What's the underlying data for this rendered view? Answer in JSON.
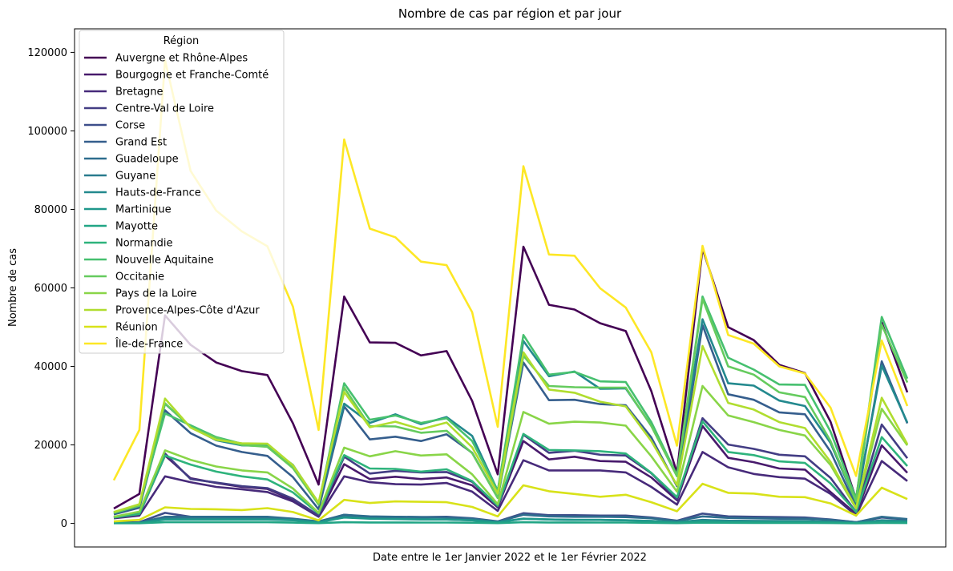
{
  "chart_data": {
    "type": "line",
    "title": "Nombre de cas par région et par jour",
    "xlabel": "Date entre le 1er Janvier 2022 et le 1er Février 2022",
    "ylabel": "Nombre de cas",
    "ylim": [
      -6000,
      126000
    ],
    "yticks": [
      0,
      20000,
      40000,
      60000,
      80000,
      100000,
      120000
    ],
    "x_ticks_shown": false,
    "n_days": 32,
    "grid": false,
    "legend": {
      "title": "Région",
      "placement": "top-left"
    },
    "series": [
      {
        "name": "Auvergne et Rhône-Alpes",
        "color": "#440154",
        "values": [
          3800,
          7500,
          53000,
          45500,
          41000,
          38800,
          37800,
          25500,
          9900,
          57800,
          46100,
          46000,
          42800,
          43900,
          31200,
          12500,
          70500,
          55700,
          54500,
          51000,
          49000,
          33700,
          12900,
          70000,
          50000,
          46700,
          40400,
          38300,
          25900,
          6200,
          51200,
          33400
        ]
      },
      {
        "name": "Bourgogne et Franche-Comté",
        "color": "#481a6c",
        "values": [
          1500,
          2300,
          17300,
          11500,
          10300,
          9300,
          8800,
          6000,
          1900,
          15100,
          11300,
          11900,
          11300,
          11700,
          9700,
          4100,
          21000,
          16300,
          17000,
          15900,
          15700,
          11700,
          5900,
          24800,
          16700,
          15600,
          14000,
          13700,
          8000,
          2400,
          19900,
          12900
        ]
      },
      {
        "name": "Bretagne",
        "color": "#472a7a",
        "values": [
          1300,
          2000,
          12000,
          10500,
          9300,
          8700,
          8000,
          5600,
          1700,
          12000,
          10500,
          10000,
          9900,
          10300,
          8100,
          3200,
          16100,
          13500,
          13500,
          13500,
          13000,
          9300,
          4800,
          18200,
          14300,
          12600,
          11800,
          11400,
          7500,
          2000,
          15900,
          10800
        ]
      },
      {
        "name": "Centre-Val de Loire",
        "color": "#433d84",
        "values": [
          1600,
          2500,
          17800,
          11300,
          10400,
          9500,
          9000,
          6300,
          2000,
          17000,
          12700,
          13400,
          13000,
          13100,
          10600,
          4300,
          22600,
          18000,
          18500,
          17500,
          17300,
          12800,
          6200,
          26800,
          20100,
          19000,
          17500,
          17100,
          11600,
          2900,
          25200,
          16600
        ]
      },
      {
        "name": "Corse",
        "color": "#3d4e8a",
        "values": [
          200,
          300,
          2700,
          1700,
          1600,
          1500,
          1500,
          1000,
          300,
          2200,
          1600,
          1700,
          1600,
          1700,
          1300,
          500,
          2600,
          2100,
          2100,
          2000,
          2000,
          1500,
          700,
          2500,
          1800,
          1700,
          1600,
          1500,
          1000,
          300,
          1500,
          1000
        ]
      },
      {
        "name": "Grand Est",
        "color": "#355e8d",
        "values": [
          2300,
          4000,
          28800,
          23000,
          19800,
          18200,
          17200,
          11800,
          3600,
          29800,
          21400,
          22100,
          21000,
          22700,
          18000,
          6500,
          41000,
          31400,
          31500,
          30400,
          30100,
          21900,
          9500,
          50500,
          32900,
          31500,
          28300,
          27800,
          18300,
          4300,
          41300,
          25500
        ]
      },
      {
        "name": "Guadeloupe",
        "color": "#2e6d8e",
        "values": [
          100,
          200,
          1700,
          1700,
          1700,
          1700,
          1700,
          1200,
          500,
          2200,
          1800,
          1700,
          1600,
          1500,
          1200,
          400,
          2200,
          1800,
          1700,
          1700,
          1600,
          1300,
          600,
          1800,
          1400,
          1300,
          1200,
          1200,
          900,
          300,
          1700,
          1100
        ]
      },
      {
        "name": "Guyane",
        "color": "#297b8e",
        "values": [
          100,
          150,
          1200,
          1200,
          1200,
          1200,
          1200,
          900,
          300,
          1700,
          1300,
          1200,
          1100,
          1000,
          800,
          300,
          1200,
          1000,
          900,
          900,
          800,
          600,
          300,
          900,
          700,
          650,
          600,
          600,
          450,
          150,
          800,
          600
        ]
      },
      {
        "name": "Hauts-de-France",
        "color": "#23898e",
        "values": [
          2600,
          4500,
          30500,
          24600,
          21200,
          19900,
          19700,
          14900,
          5100,
          30500,
          25600,
          27800,
          25300,
          27100,
          22300,
          8300,
          46500,
          37500,
          38700,
          34300,
          34400,
          24900,
          12300,
          52000,
          35700,
          35100,
          31300,
          29900,
          20500,
          5300,
          40200,
          25700
        ]
      },
      {
        "name": "Martinique",
        "color": "#1f978b",
        "values": [
          80,
          120,
          1000,
          1000,
          1000,
          1000,
          1000,
          800,
          300,
          1500,
          1200,
          1100,
          1000,
          1000,
          800,
          300,
          1200,
          1000,
          900,
          900,
          800,
          600,
          300,
          700,
          500,
          500,
          450,
          450,
          350,
          120,
          650,
          450
        ]
      },
      {
        "name": "Mayotte",
        "color": "#21a585",
        "values": [
          50,
          60,
          300,
          300,
          300,
          300,
          300,
          200,
          80,
          300,
          250,
          250,
          230,
          220,
          180,
          80,
          300,
          250,
          250,
          230,
          220,
          170,
          80,
          200,
          160,
          150,
          140,
          140,
          110,
          40,
          150,
          100
        ]
      },
      {
        "name": "Normandie",
        "color": "#2eb37c",
        "values": [
          1500,
          2400,
          17300,
          15000,
          13200,
          12000,
          11200,
          7900,
          2500,
          17400,
          14000,
          13900,
          13200,
          13800,
          10800,
          4500,
          22800,
          18700,
          18600,
          18400,
          17800,
          12900,
          6700,
          26000,
          18200,
          17400,
          15800,
          15400,
          10200,
          2900,
          22000,
          14600
        ]
      },
      {
        "name": "Nouvelle Aquitaine",
        "color": "#46c06f",
        "values": [
          2800,
          4800,
          28000,
          25000,
          22000,
          20300,
          20000,
          14300,
          5000,
          35700,
          26400,
          27500,
          25600,
          26800,
          21000,
          8300,
          48000,
          37900,
          38600,
          36200,
          36000,
          25800,
          12300,
          57800,
          42200,
          39200,
          35400,
          35300,
          23400,
          6300,
          52600,
          36900
        ]
      },
      {
        "name": "Occitanie",
        "color": "#65cb5e",
        "values": [
          2700,
          4500,
          30600,
          24500,
          21800,
          20000,
          19500,
          14100,
          4800,
          34600,
          24800,
          24700,
          23100,
          23600,
          17900,
          6500,
          42700,
          35000,
          34700,
          34600,
          34600,
          24800,
          12000,
          57200,
          40000,
          37900,
          33400,
          32200,
          21000,
          5600,
          50600,
          35900
        ]
      },
      {
        "name": "Pays de la Loire",
        "color": "#89d548",
        "values": [
          1700,
          3000,
          18600,
          16200,
          14500,
          13500,
          13000,
          8900,
          2700,
          19300,
          17100,
          18400,
          17300,
          17600,
          12500,
          4900,
          28400,
          25400,
          25900,
          25700,
          24900,
          17100,
          8100,
          35000,
          27500,
          25800,
          23800,
          22400,
          14900,
          3800,
          29200,
          19900
        ]
      },
      {
        "name": "Provence-Alpes-Côte d'Azur",
        "color": "#b0dd2f",
        "values": [
          2900,
          4900,
          31800,
          24400,
          21300,
          20400,
          20300,
          14800,
          5300,
          33500,
          24500,
          25900,
          24000,
          25700,
          19400,
          7600,
          43600,
          34100,
          33300,
          31000,
          29800,
          21000,
          9800,
          45200,
          30700,
          29000,
          25800,
          24300,
          15700,
          3900,
          32000,
          20200
        ]
      },
      {
        "name": "Réunion",
        "color": "#d8e219",
        "values": [
          500,
          900,
          4100,
          3700,
          3600,
          3400,
          3900,
          2900,
          800,
          6000,
          5200,
          5600,
          5500,
          5400,
          4200,
          1800,
          9700,
          8200,
          7500,
          6800,
          7300,
          5400,
          3100,
          10100,
          7800,
          7600,
          6800,
          6700,
          5100,
          2000,
          9100,
          6200
        ]
      },
      {
        "name": "Île-de-France",
        "color": "#fde725",
        "values": [
          11000,
          23800,
          118000,
          89800,
          79700,
          74400,
          70600,
          55200,
          23800,
          97800,
          75100,
          72900,
          66700,
          65800,
          53800,
          24600,
          91000,
          68500,
          68200,
          59900,
          55000,
          43600,
          19800,
          70700,
          48000,
          45800,
          40000,
          38200,
          29500,
          12100,
          46600,
          29900
        ]
      }
    ]
  }
}
